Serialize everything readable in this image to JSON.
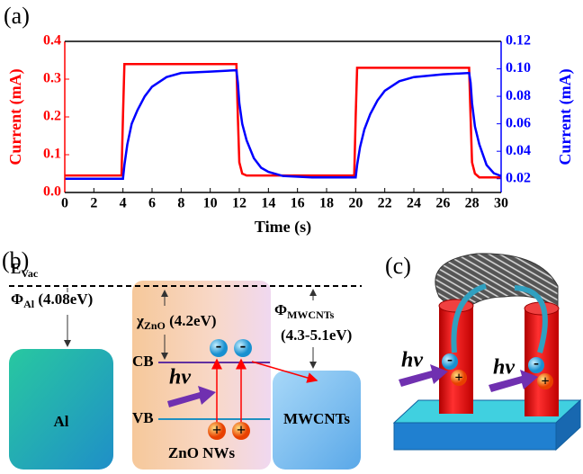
{
  "chart_data": {
    "type": "line",
    "panel": "(a)",
    "xlabel": "Time (s)",
    "ylabel": "Current (mA)",
    "y2label": "Current (mA)",
    "x": [
      0,
      3.9,
      4.0,
      4.1,
      4.3,
      4.6,
      5,
      5.5,
      6,
      7,
      8,
      10,
      11.8,
      11.9,
      12.0,
      12.2,
      12.5,
      13,
      13.5,
      14,
      15,
      17,
      19.9,
      20.0,
      20.1,
      20.3,
      20.6,
      21,
      21.5,
      22,
      23,
      24,
      26,
      27.8,
      27.9,
      28.0,
      28.2,
      28.5,
      29,
      29.5,
      30
    ],
    "series": [
      {
        "color": "#ff0000",
        "axis": "y",
        "values": [
          0.045,
          0.045,
          0.2,
          0.34,
          0.34,
          0.34,
          0.34,
          0.34,
          0.34,
          0.34,
          0.34,
          0.34,
          0.34,
          0.2,
          0.08,
          0.05,
          0.045,
          0.045,
          0.045,
          0.045,
          0.045,
          0.045,
          0.045,
          0.2,
          0.33,
          0.33,
          0.33,
          0.33,
          0.33,
          0.33,
          0.33,
          0.33,
          0.33,
          0.33,
          0.2,
          0.08,
          0.05,
          0.04,
          0.04,
          0.04,
          0.04
        ]
      },
      {
        "color": "#0000ff",
        "axis": "y2",
        "values": [
          0.02,
          0.02,
          0.02,
          0.03,
          0.045,
          0.06,
          0.07,
          0.08,
          0.087,
          0.094,
          0.097,
          0.098,
          0.099,
          0.09,
          0.075,
          0.06,
          0.048,
          0.035,
          0.028,
          0.025,
          0.022,
          0.021,
          0.021,
          0.021,
          0.03,
          0.043,
          0.056,
          0.067,
          0.077,
          0.084,
          0.091,
          0.094,
          0.096,
          0.097,
          0.09,
          0.075,
          0.058,
          0.045,
          0.03,
          0.024,
          0.022
        ]
      }
    ],
    "xlim": [
      0,
      30
    ],
    "xticks": [
      0,
      2,
      4,
      6,
      8,
      10,
      12,
      14,
      16,
      18,
      20,
      22,
      24,
      26,
      28,
      30
    ],
    "ylim": [
      0,
      0.4
    ],
    "yticks": [
      {
        "value": 0,
        "label": "0.0"
      },
      0.1,
      0.2,
      0.3,
      0.4
    ],
    "y2lim": [
      0.01,
      0.12
    ],
    "y2ticks": [
      0.02,
      0.04,
      0.06,
      0.08,
      {
        "value": 0.1,
        "label": "0.10"
      },
      0.12
    ]
  },
  "diagram_b": {
    "panel": "(b)",
    "evac": {
      "symbol": "E",
      "sub": "Vac"
    },
    "phi_al": {
      "symbol": "Φ",
      "sub": "Al",
      "value": " (4.08eV)"
    },
    "chi_zno": {
      "symbol": "χ",
      "sub": "ZnO",
      "value": " (4.2eV)"
    },
    "phi_mwcnts": {
      "symbol": "Φ",
      "sub": "MWCNTs",
      "value": "(4.3-5.1eV)"
    },
    "cb": "CB",
    "vb": "VB",
    "hv": "hv",
    "al": "Al",
    "zno": "ZnO NWs",
    "mwcnts": "MWCNTs",
    "electron": "-",
    "hole": "+"
  },
  "diagram_c": {
    "panel": "(c)",
    "hv": "hv",
    "electron": "-",
    "hole": "+"
  }
}
